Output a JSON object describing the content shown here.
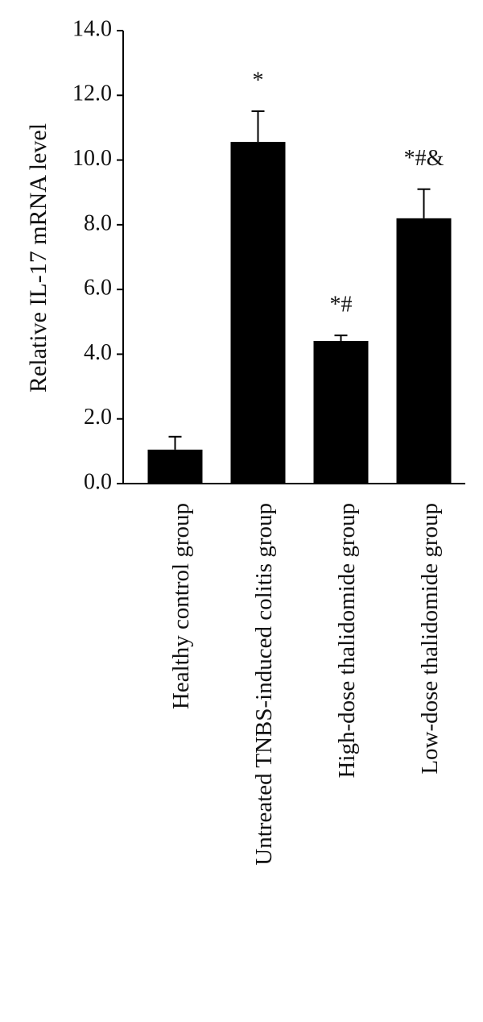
{
  "chart_data": {
    "type": "bar",
    "y_label": "Relative IL-17 mRNA level",
    "categories": [
      "Healthy control group",
      "Untreated TNBS-induced colitis group",
      "High-dose thalidomide group",
      "Low-dose thalidomide group"
    ],
    "values": [
      1.05,
      10.56,
      4.41,
      8.2
    ],
    "errors": [
      0.4,
      0.95,
      0.17,
      0.9
    ],
    "significance": [
      null,
      "*",
      "*#",
      "*#&"
    ],
    "color": "#000000",
    "ylim": [
      0,
      14
    ],
    "yticks": [
      {
        "value": 0,
        "label": "0.0"
      },
      {
        "value": 2,
        "label": "2.0"
      },
      {
        "value": 4,
        "label": "4.0"
      },
      {
        "value": 6,
        "label": "6.0"
      },
      {
        "value": 8,
        "label": "8.0"
      },
      {
        "value": 10,
        "label": "10.0"
      },
      {
        "value": 12,
        "label": "12.0"
      },
      {
        "value": 14,
        "label": "14.0"
      }
    ],
    "grid": false
  }
}
